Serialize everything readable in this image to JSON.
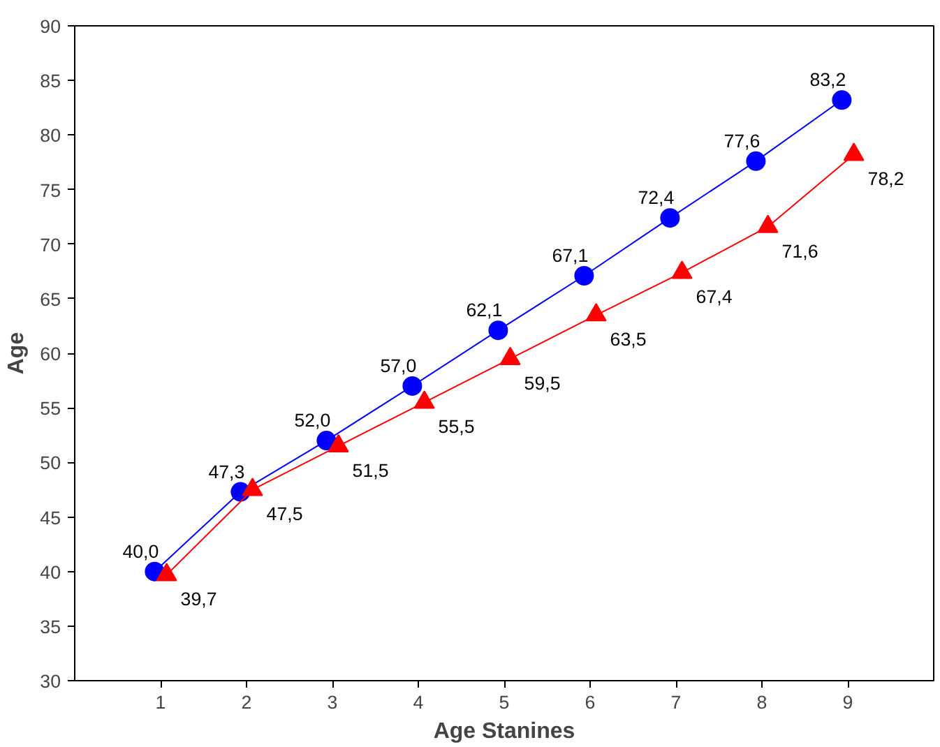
{
  "chart_data": {
    "type": "line",
    "xlabel": "Age Stanines",
    "ylabel": "Age",
    "xlim": [
      0,
      10
    ],
    "xticks": [
      1,
      2,
      3,
      4,
      5,
      6,
      7,
      8,
      9
    ],
    "ylim": [
      30,
      90
    ],
    "yticks": [
      30,
      35,
      40,
      45,
      50,
      55,
      60,
      65,
      70,
      75,
      80,
      85,
      90
    ],
    "grid": false,
    "series": [
      {
        "color": "#0000ff",
        "marker": "circle",
        "x": [
          0.93,
          1.93,
          2.93,
          3.93,
          4.93,
          5.93,
          6.93,
          7.93,
          8.93
        ],
        "values": [
          40.0,
          47.3,
          52.0,
          57.0,
          62.1,
          67.1,
          72.4,
          77.6,
          83.2
        ],
        "value_labels": [
          "40,0",
          "47,3",
          "52,0",
          "57,0",
          "62,1",
          "67,1",
          "72,4",
          "77,6",
          "83,2"
        ]
      },
      {
        "color": "#ff0000",
        "marker": "triangle",
        "x": [
          1.07,
          2.07,
          3.07,
          4.07,
          5.07,
          6.07,
          7.07,
          8.07,
          9.07
        ],
        "values": [
          39.7,
          47.5,
          51.5,
          55.5,
          59.5,
          63.5,
          67.4,
          71.6,
          78.2
        ],
        "value_labels": [
          "39,7",
          "47,5",
          "51,5",
          "55,5",
          "59,5",
          "63,5",
          "67,4",
          "71,6",
          "78,2"
        ]
      }
    ]
  }
}
